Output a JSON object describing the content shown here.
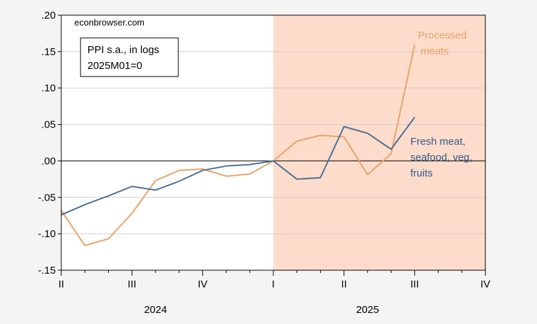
{
  "chart_data": {
    "type": "line",
    "watermark": "econbrowser.com",
    "legend_box": {
      "line1": "PPI s.a., in logs",
      "line2": "2025M01=0"
    },
    "ylim": [
      -0.15,
      0.2
    ],
    "yticks": [
      {
        "v": 0.2,
        "label": ".20"
      },
      {
        "v": 0.15,
        "label": ".15"
      },
      {
        "v": 0.1,
        "label": ".10"
      },
      {
        "v": 0.05,
        "label": ".05"
      },
      {
        "v": 0.0,
        "label": ".00"
      },
      {
        "v": -0.05,
        "label": "-.05"
      },
      {
        "v": -0.1,
        "label": "-.10"
      },
      {
        "v": -0.15,
        "label": "-.15"
      }
    ],
    "xlim": [
      "2024-04",
      "2025-10"
    ],
    "xticks": [
      {
        "t": "2024-04",
        "label": "II"
      },
      {
        "t": "2024-07",
        "label": "III"
      },
      {
        "t": "2024-10",
        "label": "IV"
      },
      {
        "t": "2025-01",
        "label": "I"
      },
      {
        "t": "2025-04",
        "label": "II"
      },
      {
        "t": "2025-07",
        "label": "III"
      },
      {
        "t": "2025-10",
        "label": "IV"
      }
    ],
    "year_labels": [
      {
        "t": "2024-08",
        "label": "2024"
      },
      {
        "t": "2025-05",
        "label": "2025"
      }
    ],
    "shaded_region": {
      "from": "2025-01",
      "to": "2025-10",
      "color": "#fddccb"
    },
    "zero_line": true,
    "x": [
      "2024-04",
      "2024-05",
      "2024-06",
      "2024-07",
      "2024-08",
      "2024-09",
      "2024-10",
      "2024-11",
      "2024-12",
      "2025-01",
      "2025-02",
      "2025-03",
      "2025-04",
      "2025-05",
      "2025-06",
      "2025-07"
    ],
    "series": [
      {
        "name_lines": [
          "Processed",
          "meats"
        ],
        "color": "#e8a366",
        "values": [
          -0.068,
          -0.116,
          -0.107,
          -0.072,
          -0.027,
          -0.013,
          -0.011,
          -0.021,
          -0.018,
          0.0,
          0.027,
          0.035,
          0.033,
          -0.019,
          0.01,
          0.159
        ]
      },
      {
        "name_lines": [
          "Fresh meat,",
          "seafood, veg,",
          "fruits"
        ],
        "color": "#4a6f96",
        "values": [
          -0.074,
          -0.06,
          -0.048,
          -0.035,
          -0.04,
          -0.028,
          -0.013,
          -0.007,
          -0.005,
          0.0,
          -0.025,
          -0.023,
          0.047,
          0.038,
          0.016,
          0.06
        ]
      }
    ]
  }
}
